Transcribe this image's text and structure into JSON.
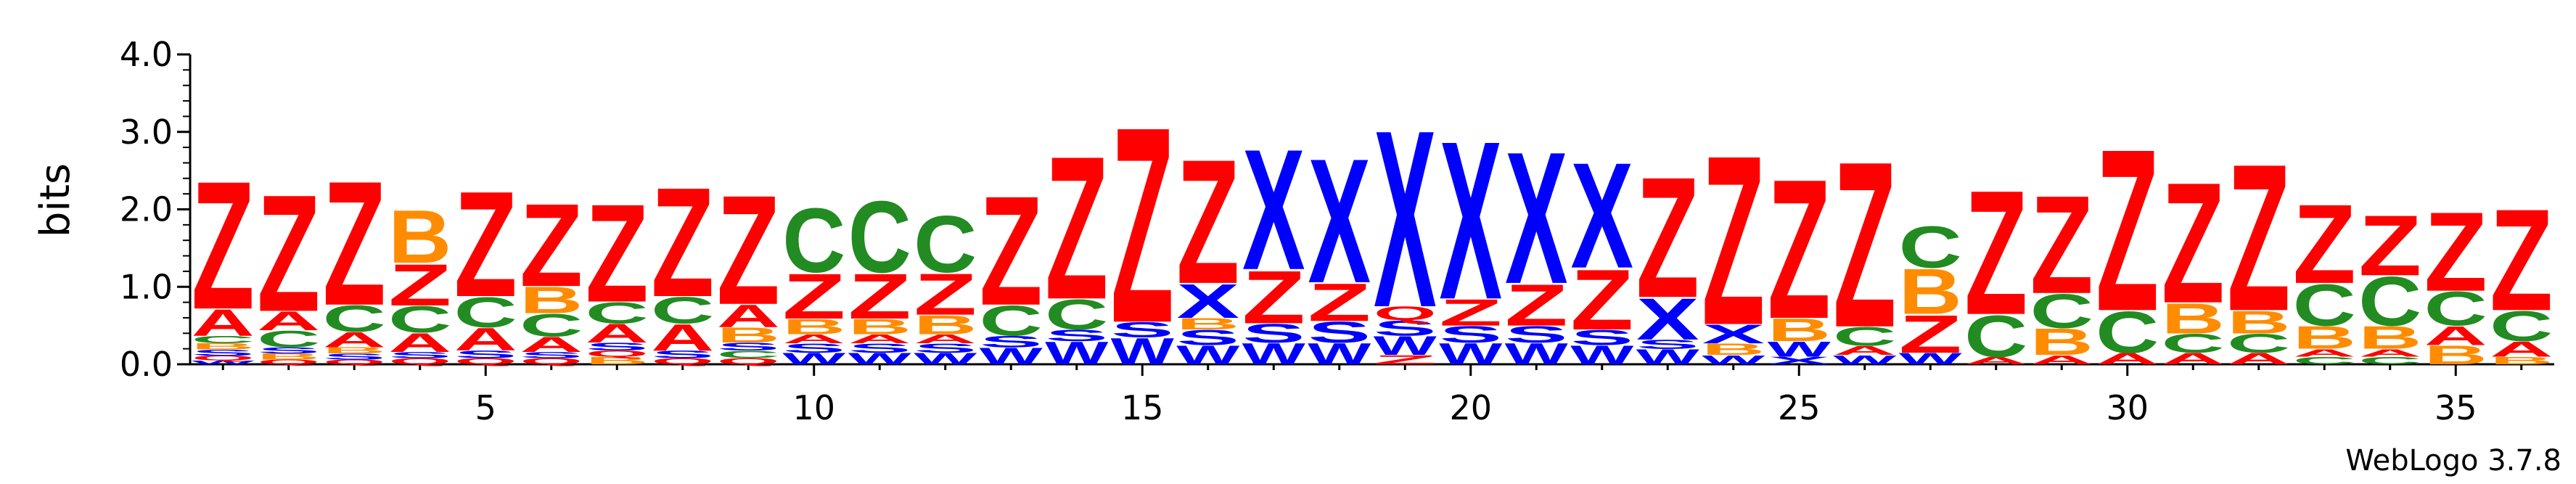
{
  "chart_data": {
    "type": "sequence-logo",
    "ylabel": "bits",
    "ylim": [
      0,
      4.0
    ],
    "y_ticks": [
      "0.0",
      "1.0",
      "2.0",
      "3.0",
      "4.0"
    ],
    "x_ticks": [
      5,
      10,
      15,
      20,
      25,
      30,
      35
    ],
    "credit": "WebLogo 3.7.8",
    "colors": {
      "Z": "#ff0000",
      "A": "#ff0000",
      "X": "#0000ff",
      "S": "#0000ff",
      "W": "#0000ff",
      "C": "#228b22",
      "B": "#ff8c00",
      "Q": "#ff0000"
    },
    "positions": [
      {
        "pos": 1,
        "stack": [
          [
            "W",
            0.05
          ],
          [
            "Q",
            0.06
          ],
          [
            "S",
            0.08
          ],
          [
            "B",
            0.08
          ],
          [
            "C",
            0.1
          ],
          [
            "A",
            0.35
          ],
          [
            "Z",
            1.7
          ]
        ]
      },
      {
        "pos": 2,
        "stack": [
          [
            "Q",
            0.06
          ],
          [
            "B",
            0.08
          ],
          [
            "S",
            0.08
          ],
          [
            "C",
            0.22
          ],
          [
            "A",
            0.25
          ],
          [
            "Z",
            1.55
          ]
        ]
      },
      {
        "pos": 3,
        "stack": [
          [
            "Q",
            0.06
          ],
          [
            "S",
            0.08
          ],
          [
            "B",
            0.08
          ],
          [
            "A",
            0.2
          ],
          [
            "C",
            0.35
          ],
          [
            "Z",
            1.65
          ]
        ]
      },
      {
        "pos": 4,
        "stack": [
          [
            "Q",
            0.08
          ],
          [
            "S",
            0.08
          ],
          [
            "A",
            0.25
          ],
          [
            "C",
            0.35
          ],
          [
            "Z",
            0.55
          ],
          [
            "B",
            0.7
          ]
        ]
      },
      {
        "pos": 5,
        "stack": [
          [
            "Q",
            0.08
          ],
          [
            "S",
            0.1
          ],
          [
            "A",
            0.3
          ],
          [
            "C",
            0.4
          ],
          [
            "Z",
            1.4
          ]
        ]
      },
      {
        "pos": 6,
        "stack": [
          [
            "Q",
            0.08
          ],
          [
            "S",
            0.08
          ],
          [
            "A",
            0.2
          ],
          [
            "C",
            0.3
          ],
          [
            "B",
            0.35
          ],
          [
            "Z",
            1.1
          ]
        ]
      },
      {
        "pos": 7,
        "stack": [
          [
            "B",
            0.1
          ],
          [
            "Q",
            0.08
          ],
          [
            "S",
            0.1
          ],
          [
            "A",
            0.25
          ],
          [
            "C",
            0.28
          ],
          [
            "Z",
            1.3
          ]
        ]
      },
      {
        "pos": 8,
        "stack": [
          [
            "Q",
            0.08
          ],
          [
            "S",
            0.1
          ],
          [
            "A",
            0.35
          ],
          [
            "C",
            0.35
          ],
          [
            "Z",
            1.45
          ]
        ]
      },
      {
        "pos": 9,
        "stack": [
          [
            "Q",
            0.08
          ],
          [
            "C",
            0.1
          ],
          [
            "S",
            0.1
          ],
          [
            "B",
            0.2
          ],
          [
            "A",
            0.3
          ],
          [
            "Z",
            1.45
          ]
        ]
      },
      {
        "pos": 10,
        "stack": [
          [
            "W",
            0.15
          ],
          [
            "S",
            0.12
          ],
          [
            "A",
            0.12
          ],
          [
            "B",
            0.2
          ],
          [
            "Z",
            0.6
          ],
          [
            "C",
            0.85
          ]
        ]
      },
      {
        "pos": 11,
        "stack": [
          [
            "W",
            0.15
          ],
          [
            "S",
            0.12
          ],
          [
            "A",
            0.12
          ],
          [
            "B",
            0.2
          ],
          [
            "Z",
            0.6
          ],
          [
            "C",
            0.95
          ]
        ]
      },
      {
        "pos": 12,
        "stack": [
          [
            "W",
            0.15
          ],
          [
            "S",
            0.12
          ],
          [
            "A",
            0.12
          ],
          [
            "B",
            0.25
          ],
          [
            "Z",
            0.55
          ],
          [
            "C",
            0.75
          ]
        ]
      },
      {
        "pos": 13,
        "stack": [
          [
            "W",
            0.22
          ],
          [
            "S",
            0.15
          ],
          [
            "C",
            0.4
          ],
          [
            "Z",
            1.45
          ]
        ]
      },
      {
        "pos": 14,
        "stack": [
          [
            "W",
            0.3
          ],
          [
            "S",
            0.15
          ],
          [
            "C",
            0.4
          ],
          [
            "Z",
            1.9
          ]
        ]
      },
      {
        "pos": 15,
        "stack": [
          [
            "W",
            0.35
          ],
          [
            "S",
            0.2
          ],
          [
            "Z",
            2.6
          ]
        ]
      },
      {
        "pos": 16,
        "stack": [
          [
            "W",
            0.25
          ],
          [
            "S",
            0.2
          ],
          [
            "B",
            0.15
          ],
          [
            "X",
            0.45
          ],
          [
            "Z",
            1.65
          ]
        ]
      },
      {
        "pos": 17,
        "stack": [
          [
            "W",
            0.28
          ],
          [
            "S",
            0.25
          ],
          [
            "Z",
            0.7
          ],
          [
            "X",
            1.6
          ]
        ]
      },
      {
        "pos": 18,
        "stack": [
          [
            "W",
            0.28
          ],
          [
            "S",
            0.28
          ],
          [
            "Z",
            0.5
          ],
          [
            "X",
            1.65
          ]
        ]
      },
      {
        "pos": 19,
        "stack": [
          [
            "Z",
            0.12
          ],
          [
            "W",
            0.25
          ],
          [
            "S",
            0.2
          ],
          [
            "Q",
            0.18
          ],
          [
            "X",
            2.35
          ]
        ]
      },
      {
        "pos": 20,
        "stack": [
          [
            "W",
            0.28
          ],
          [
            "S",
            0.22
          ],
          [
            "Z",
            0.35
          ],
          [
            "X",
            2.1
          ]
        ]
      },
      {
        "pos": 21,
        "stack": [
          [
            "W",
            0.28
          ],
          [
            "S",
            0.22
          ],
          [
            "Z",
            0.55
          ],
          [
            "X",
            1.75
          ]
        ]
      },
      {
        "pos": 22,
        "stack": [
          [
            "W",
            0.25
          ],
          [
            "S",
            0.2
          ],
          [
            "Z",
            0.8
          ],
          [
            "X",
            1.4
          ]
        ]
      },
      {
        "pos": 23,
        "stack": [
          [
            "W",
            0.2
          ],
          [
            "S",
            0.12
          ],
          [
            "X",
            0.55
          ],
          [
            "Z",
            1.6
          ]
        ]
      },
      {
        "pos": 24,
        "stack": [
          [
            "W",
            0.12
          ],
          [
            "B",
            0.15
          ],
          [
            "X",
            0.25
          ],
          [
            "Z",
            2.25
          ]
        ]
      },
      {
        "pos": 25,
        "stack": [
          [
            "X",
            0.1
          ],
          [
            "W",
            0.2
          ],
          [
            "B",
            0.3
          ],
          [
            "Z",
            1.85
          ]
        ]
      },
      {
        "pos": 26,
        "stack": [
          [
            "W",
            0.12
          ],
          [
            "A",
            0.12
          ],
          [
            "C",
            0.25
          ],
          [
            "Z",
            2.2
          ]
        ]
      },
      {
        "pos": 27,
        "stack": [
          [
            "W",
            0.15
          ],
          [
            "Z",
            0.5
          ],
          [
            "B",
            0.6
          ],
          [
            "C",
            0.55
          ]
        ]
      },
      {
        "pos": 28,
        "stack": [
          [
            "A",
            0.1
          ],
          [
            "C",
            0.55
          ],
          [
            "Z",
            1.65
          ]
        ]
      },
      {
        "pos": 29,
        "stack": [
          [
            "A",
            0.12
          ],
          [
            "B",
            0.35
          ],
          [
            "C",
            0.45
          ],
          [
            "Z",
            1.3
          ]
        ]
      },
      {
        "pos": 30,
        "stack": [
          [
            "A",
            0.15
          ],
          [
            "C",
            0.55
          ],
          [
            "Z",
            2.15
          ]
        ]
      },
      {
        "pos": 31,
        "stack": [
          [
            "A",
            0.15
          ],
          [
            "C",
            0.25
          ],
          [
            "B",
            0.4
          ],
          [
            "Z",
            1.6
          ]
        ]
      },
      {
        "pos": 32,
        "stack": [
          [
            "A",
            0.15
          ],
          [
            "C",
            0.25
          ],
          [
            "B",
            0.3
          ],
          [
            "Z",
            1.95
          ]
        ]
      },
      {
        "pos": 33,
        "stack": [
          [
            "C",
            0.1
          ],
          [
            "A",
            0.1
          ],
          [
            "B",
            0.3
          ],
          [
            "C",
            0.55
          ],
          [
            "Z",
            1.05
          ]
        ]
      },
      {
        "pos": 34,
        "stack": [
          [
            "C",
            0.1
          ],
          [
            "A",
            0.1
          ],
          [
            "B",
            0.3
          ],
          [
            "C",
            0.65
          ],
          [
            "Z",
            0.8
          ]
        ]
      },
      {
        "pos": 35,
        "stack": [
          [
            "B",
            0.25
          ],
          [
            "A",
            0.25
          ],
          [
            "C",
            0.45
          ],
          [
            "Z",
            1.05
          ]
        ]
      },
      {
        "pos": 36,
        "stack": [
          [
            "B",
            0.1
          ],
          [
            "A",
            0.2
          ],
          [
            "C",
            0.4
          ],
          [
            "Z",
            1.35
          ]
        ]
      }
    ]
  }
}
